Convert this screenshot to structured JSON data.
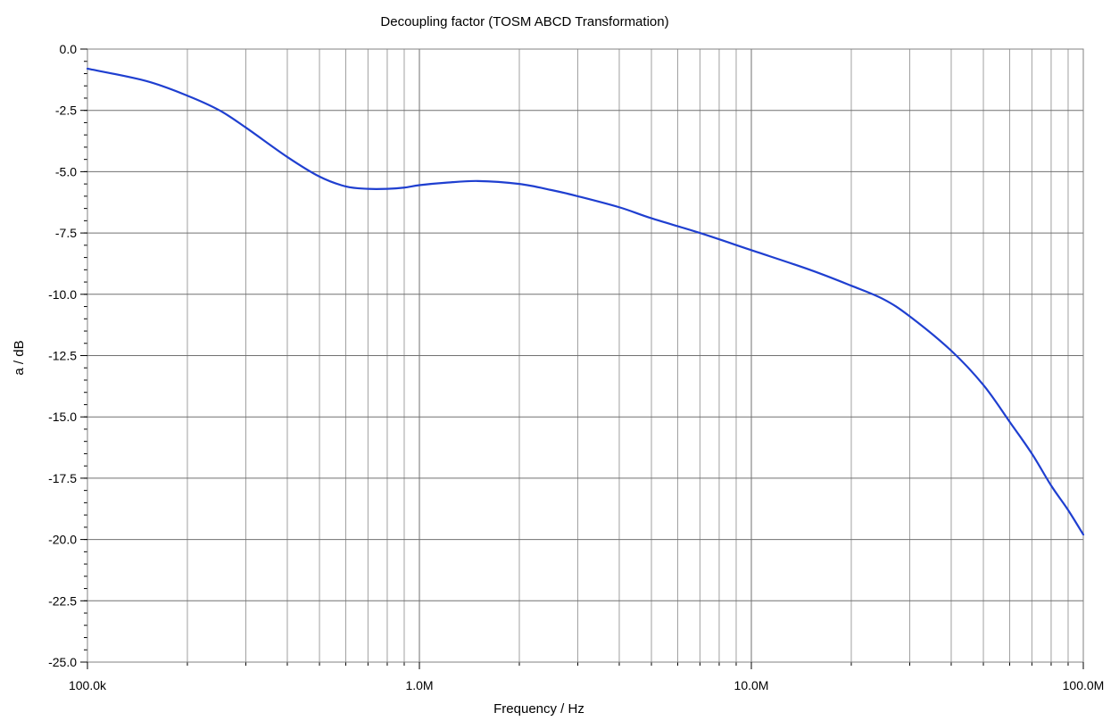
{
  "chart_data": {
    "type": "line",
    "title": "Decoupling factor (TOSM ABCD Transformation)",
    "xlabel": "Frequency / Hz",
    "ylabel": "a / dB",
    "x_scale": "log",
    "xlim": [
      100000,
      100000000
    ],
    "ylim": [
      -25.0,
      0.0
    ],
    "x_ticks": [
      {
        "value": 100000,
        "label": "100.0k"
      },
      {
        "value": 1000000,
        "label": "1.0M"
      },
      {
        "value": 10000000,
        "label": "10.0M"
      },
      {
        "value": 100000000,
        "label": "100.0M"
      }
    ],
    "y_ticks": [
      {
        "value": 0.0,
        "label": "0.0"
      },
      {
        "value": -2.5,
        "label": "-2.5"
      },
      {
        "value": -5.0,
        "label": "-5.0"
      },
      {
        "value": -7.5,
        "label": "-7.5"
      },
      {
        "value": -10.0,
        "label": "-10.0"
      },
      {
        "value": -12.5,
        "label": "-12.5"
      },
      {
        "value": -15.0,
        "label": "-15.0"
      },
      {
        "value": -17.5,
        "label": "-17.5"
      },
      {
        "value": -20.0,
        "label": "-20.0"
      },
      {
        "value": -22.5,
        "label": "-22.5"
      },
      {
        "value": -25.0,
        "label": "-25.0"
      }
    ],
    "grid": true,
    "legend": "none",
    "line_color": "#1f3fd0",
    "series": [
      {
        "x": [
          100000,
          150000,
          200000,
          250000,
          300000,
          400000,
          500000,
          600000,
          700000,
          800000,
          900000,
          1000000,
          1200000,
          1500000,
          2000000,
          2500000,
          3000000,
          4000000,
          5000000,
          7000000,
          10000000,
          15000000,
          20000000,
          25000000,
          30000000,
          40000000,
          50000000,
          60000000,
          70000000,
          80000000,
          90000000,
          100000000
        ],
        "y": [
          -0.8,
          -1.3,
          -1.9,
          -2.5,
          -3.2,
          -4.4,
          -5.2,
          -5.6,
          -5.7,
          -5.7,
          -5.65,
          -5.55,
          -5.45,
          -5.38,
          -5.5,
          -5.75,
          -6.0,
          -6.45,
          -6.9,
          -7.5,
          -8.2,
          -9.0,
          -9.65,
          -10.2,
          -10.9,
          -12.3,
          -13.7,
          -15.2,
          -16.5,
          -17.8,
          -18.8,
          -19.8
        ]
      }
    ]
  }
}
